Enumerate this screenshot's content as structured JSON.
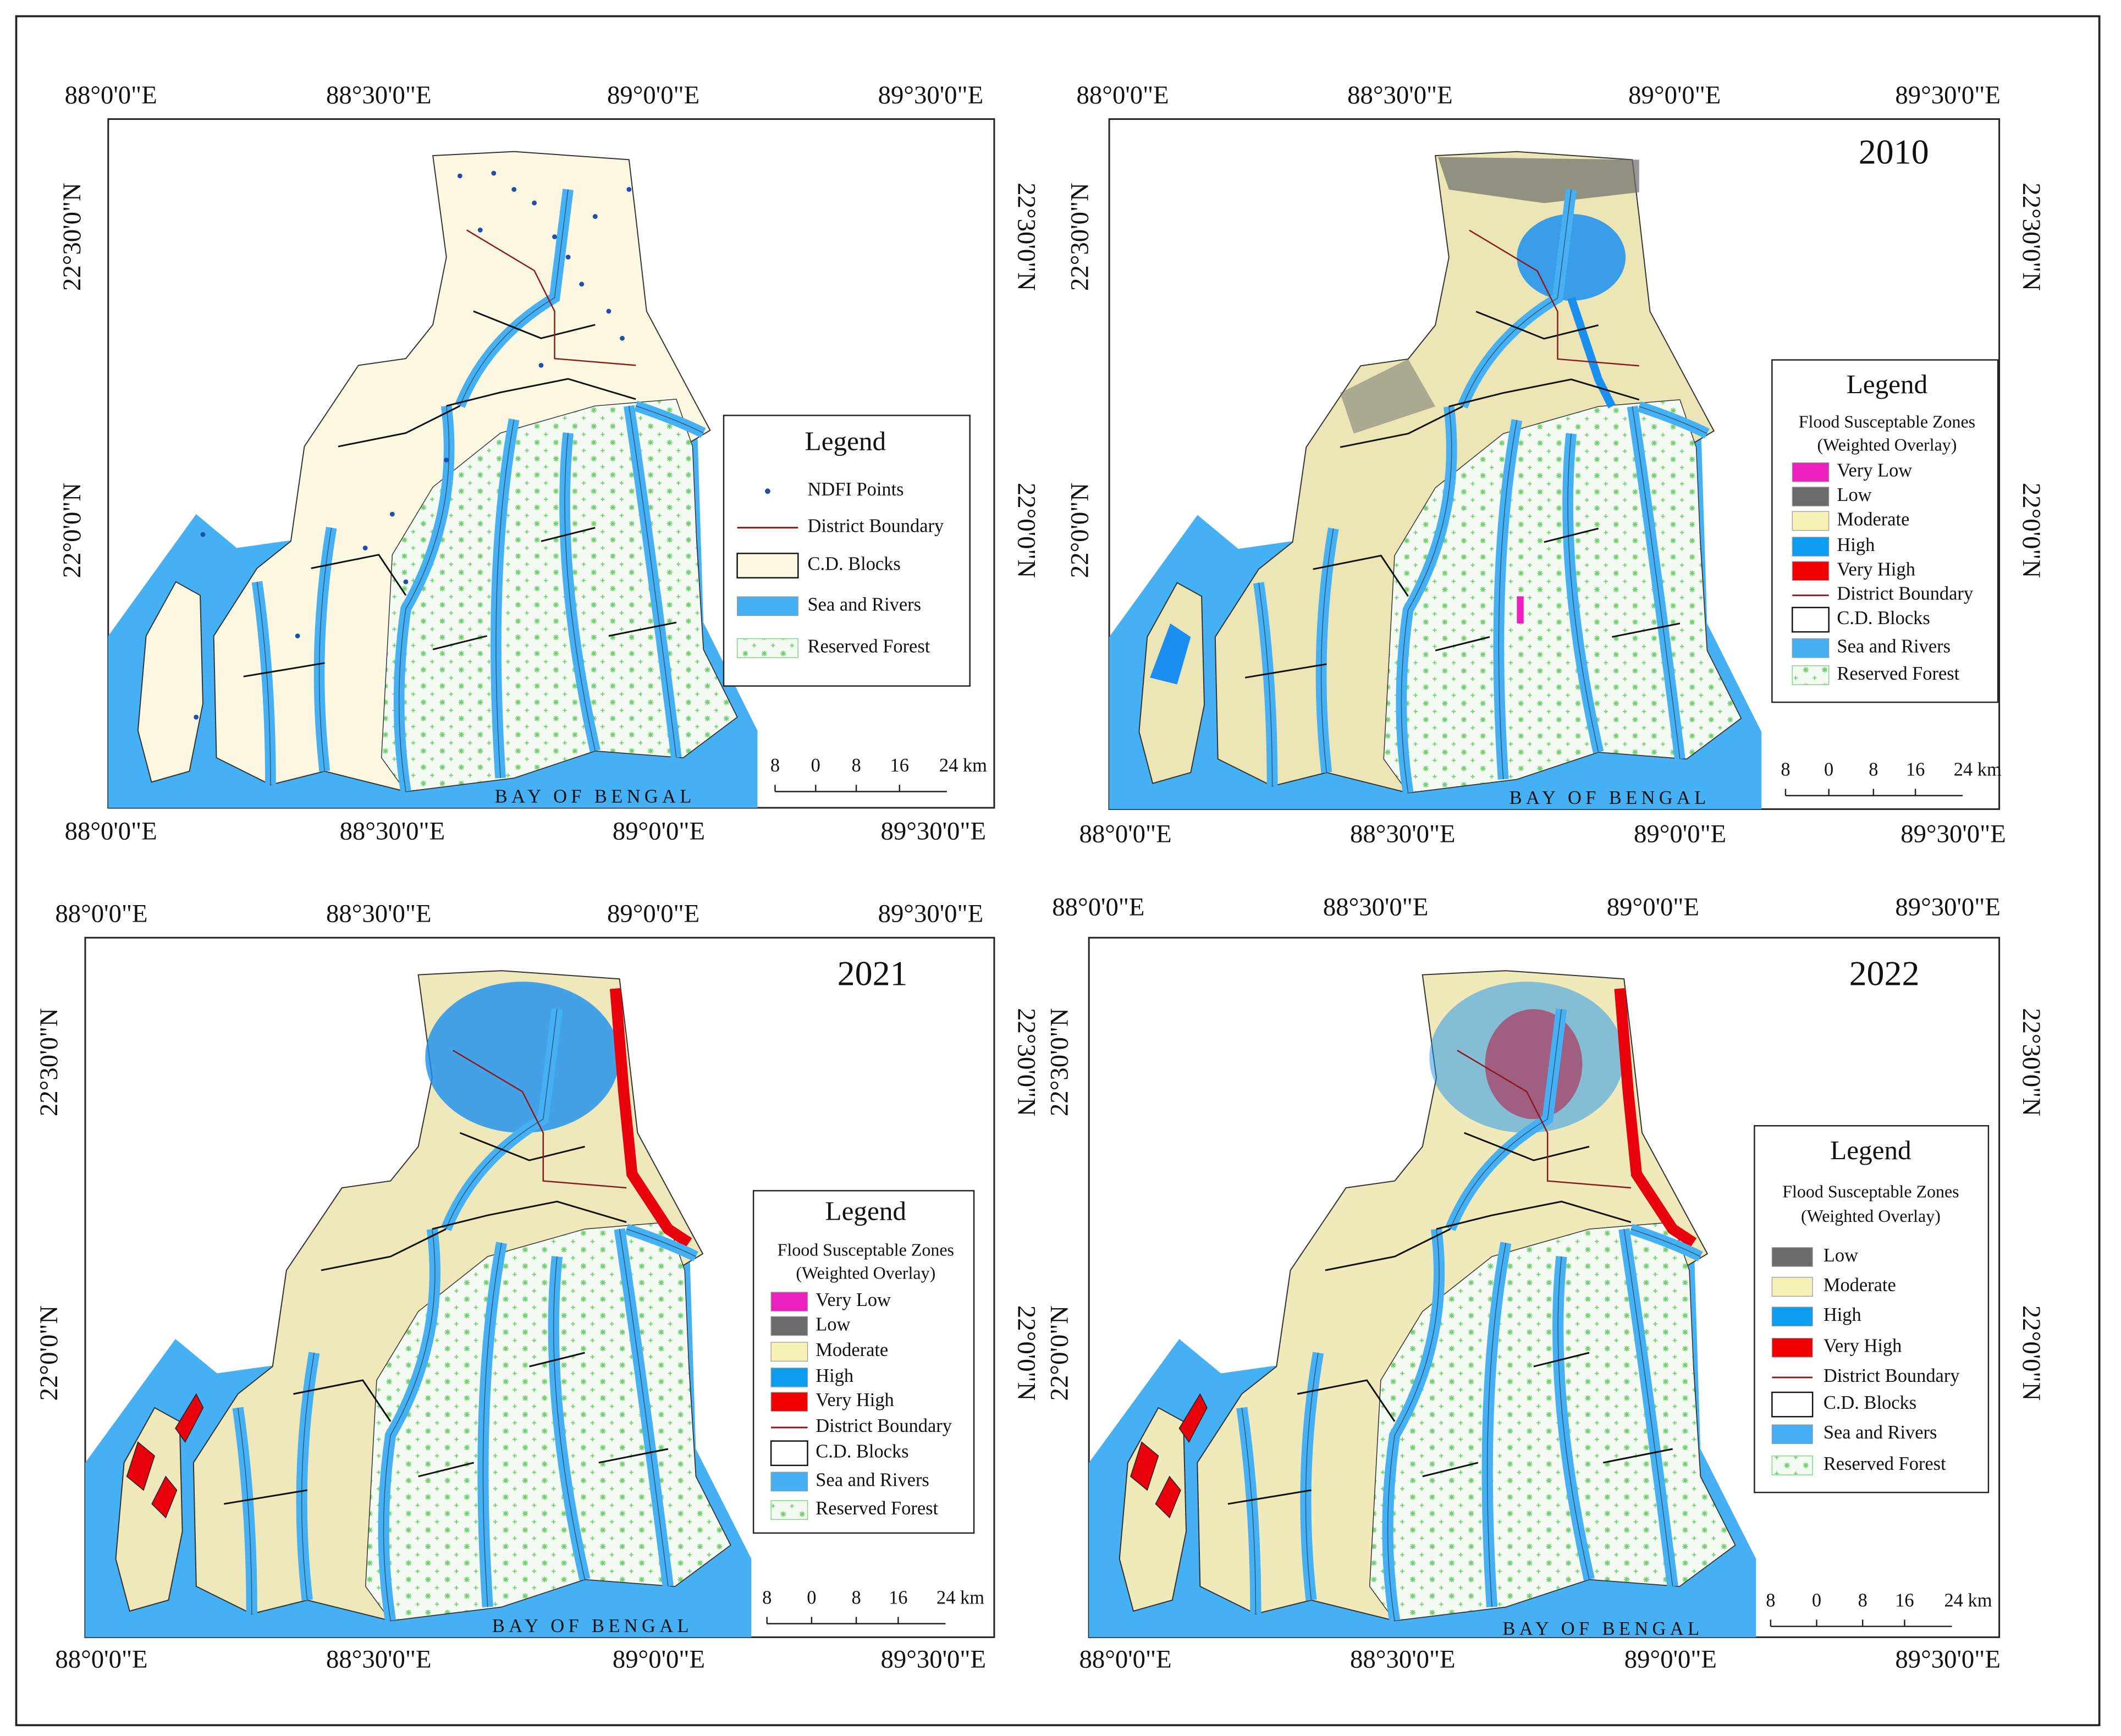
{
  "panels": [
    {
      "top_labels": [
        "88°0'0\"E",
        "88°30'0\"E",
        "89°0'0\"E",
        "89°30'0\"E"
      ],
      "bottom_labels": [
        "88°0'0\"E",
        "88°30'0\"E",
        "89°0'0\"E",
        "89°30'0\"E"
      ],
      "left_labels": [
        "22°30'0\"N",
        "22°0'0\"N"
      ],
      "right_labels": [
        "22°30'0\"N",
        "22°0'0\"N"
      ],
      "legend": {
        "title": "Legend",
        "items": [
          {
            "label": "NDFI Points",
            "symbol": "dot",
            "color": "#1f4fa8"
          },
          {
            "label": "District Boundary",
            "symbol": "line",
            "color": "#8b1a1a"
          },
          {
            "label": "C.D. Blocks",
            "symbol": "box",
            "color": "#fdf8e1"
          },
          {
            "label": "Sea and Rivers",
            "symbol": "fill",
            "color": "#45b0f4"
          },
          {
            "label": "Reserved Forest",
            "symbol": "pattern",
            "color": "#7fd67f"
          }
        ]
      },
      "scale_labels": [
        "8",
        "0",
        "8",
        "16",
        "24 km"
      ],
      "sea_label": "BAY OF BENGAL"
    },
    {
      "year": "2010",
      "top_labels": [
        "88°0'0\"E",
        "88°30'0\"E",
        "89°0'0\"E",
        "89°30'0\"E"
      ],
      "bottom_labels": [
        "88°0'0\"E",
        "88°30'0\"E",
        "89°0'0\"E",
        "89°30'0\"E"
      ],
      "left_labels": [
        "22°30'0\"N",
        "22°0'0\"N"
      ],
      "right_labels": [
        "22°30'0\"N",
        "22°0'0\"N"
      ],
      "legend": {
        "title": "Legend",
        "subtitle": [
          "Flood Susceptable Zones",
          "(Weighted Overlay)"
        ],
        "items": [
          {
            "label": "Very Low",
            "symbol": "fill",
            "color": "#ec1fbf"
          },
          {
            "label": "Low",
            "symbol": "fill",
            "color": "#6b6b6b"
          },
          {
            "label": "Moderate",
            "symbol": "fill",
            "color": "#f6f2b7"
          },
          {
            "label": "High",
            "symbol": "fill",
            "color": "#0a9df0"
          },
          {
            "label": "Very High",
            "symbol": "fill",
            "color": "#f00000"
          },
          {
            "label": "District Boundary",
            "symbol": "line",
            "color": "#8b1a1a"
          },
          {
            "label": "C.D. Blocks",
            "symbol": "box",
            "color": "#ffffff"
          },
          {
            "label": "Sea and Rivers",
            "symbol": "fill",
            "color": "#45b0f4"
          },
          {
            "label": "Reserved Forest",
            "symbol": "pattern",
            "color": "#7fd67f"
          }
        ]
      },
      "scale_labels": [
        "8",
        "0",
        "8",
        "16",
        "24 km"
      ],
      "sea_label": "BAY OF BENGAL"
    },
    {
      "year": "2021",
      "top_labels": [
        "88°0'0\"E",
        "88°30'0\"E",
        "89°0'0\"E",
        "89°30'0\"E"
      ],
      "bottom_labels": [
        "88°0'0\"E",
        "88°30'0\"E",
        "89°0'0\"E",
        "89°30'0\"E"
      ],
      "left_labels": [
        "22°30'0\"N",
        "22°0'0\"N"
      ],
      "right_labels": [
        "22°30'0\"N",
        "22°0'0\"N"
      ],
      "legend": {
        "title": "Legend",
        "subtitle": [
          "Flood Susceptable Zones",
          "(Weighted Overlay)"
        ],
        "items": [
          {
            "label": "Very Low",
            "symbol": "fill",
            "color": "#ec1fbf"
          },
          {
            "label": "Low",
            "symbol": "fill",
            "color": "#6b6b6b"
          },
          {
            "label": "Moderate",
            "symbol": "fill",
            "color": "#f6f2b7"
          },
          {
            "label": "High",
            "symbol": "fill",
            "color": "#0a9df0"
          },
          {
            "label": "Very High",
            "symbol": "fill",
            "color": "#f00000"
          },
          {
            "label": "District Boundary",
            "symbol": "line",
            "color": "#8b1a1a"
          },
          {
            "label": "C.D. Blocks",
            "symbol": "box",
            "color": "#ffffff"
          },
          {
            "label": "Sea and Rivers",
            "symbol": "fill",
            "color": "#45b0f4"
          },
          {
            "label": "Reserved Forest",
            "symbol": "pattern",
            "color": "#7fd67f"
          }
        ]
      },
      "scale_labels": [
        "8",
        "0",
        "8",
        "16",
        "24 km"
      ],
      "sea_label": "BAY OF BENGAL"
    },
    {
      "year": "2022",
      "top_labels": [
        "88°0'0\"E",
        "88°30'0\"E",
        "89°0'0\"E",
        "89°30'0\"E"
      ],
      "bottom_labels": [
        "88°0'0\"E",
        "88°30'0\"E",
        "89°0'0\"E",
        "89°30'0\"E"
      ],
      "left_labels": [
        "22°30'0\"N",
        "22°0'0\"N"
      ],
      "right_labels": [
        "22°30'0\"N",
        "22°0'0\"N"
      ],
      "legend": {
        "title": "Legend",
        "subtitle": [
          "Flood Susceptable Zones",
          "(Weighted Overlay)"
        ],
        "items": [
          {
            "label": "Low",
            "symbol": "fill",
            "color": "#6b6b6b"
          },
          {
            "label": "Moderate",
            "symbol": "fill",
            "color": "#f6f2b7"
          },
          {
            "label": "High",
            "symbol": "fill",
            "color": "#0a9df0"
          },
          {
            "label": "Very High",
            "symbol": "fill",
            "color": "#f00000"
          },
          {
            "label": "District Boundary",
            "symbol": "line",
            "color": "#8b1a1a"
          },
          {
            "label": "C.D. Blocks",
            "symbol": "box",
            "color": "#ffffff"
          },
          {
            "label": "Sea and Rivers",
            "symbol": "fill",
            "color": "#45b0f4"
          },
          {
            "label": "Reserved Forest",
            "symbol": "pattern",
            "color": "#7fd67f"
          }
        ]
      },
      "scale_labels": [
        "8",
        "0",
        "8",
        "16",
        "24 km"
      ],
      "sea_label": "BAY OF BENGAL"
    }
  ]
}
